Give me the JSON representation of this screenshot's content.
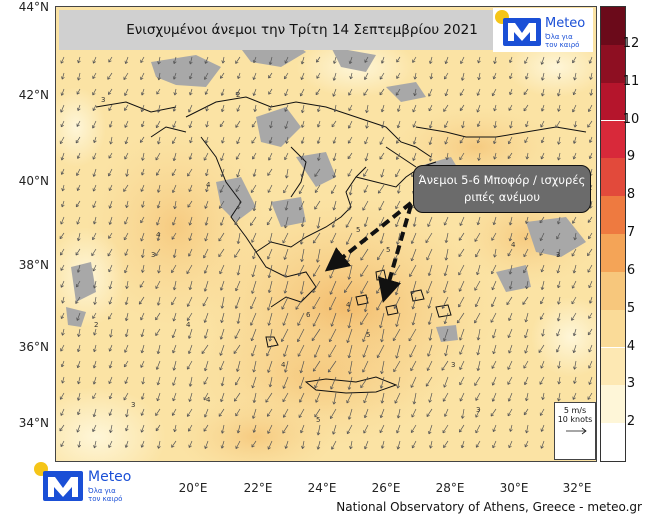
{
  "title": "Ενισχυμένοι άνεμοι την Τρίτη 14 Σεπτεμβρίου 2021",
  "logo": {
    "brand": "Meteo",
    "tagline_line1": "Όλα για",
    "tagline_line2": "τον καιρό",
    "brand_color": "#1a4fd6",
    "dot_color": "#f5c518"
  },
  "lat_labels": [
    "44°N",
    "42°N",
    "40°N",
    "38°N",
    "36°N",
    "34°N"
  ],
  "lon_labels": [
    "20°E",
    "22°E",
    "24°E",
    "26°E",
    "28°E",
    "30°E",
    "32°E"
  ],
  "annotation": {
    "line1": "Άνεμοι 5-6 Μποφόρ / ισχυρές",
    "line2": "ριπές ανέμου"
  },
  "reference_vector": {
    "line1": "5 m/s",
    "line2": "10 knots"
  },
  "color_scale": {
    "labels": [
      "12",
      "11",
      "10",
      "9",
      "8",
      "7",
      "6",
      "5",
      "4",
      "3",
      "2"
    ],
    "colors": [
      "#6b0a1a",
      "#8e0f22",
      "#b5152c",
      "#d8293a",
      "#e24a3b",
      "#ee7a40",
      "#f4a457",
      "#f7c77c",
      "#fadb98",
      "#fde8b3",
      "#fef6d8",
      "#ffffff"
    ]
  },
  "footer": "National Observatory of Athens, Greece - meteo.gr",
  "land_gray": "#a8a8a8",
  "sea_base": "#fbe3a4"
}
